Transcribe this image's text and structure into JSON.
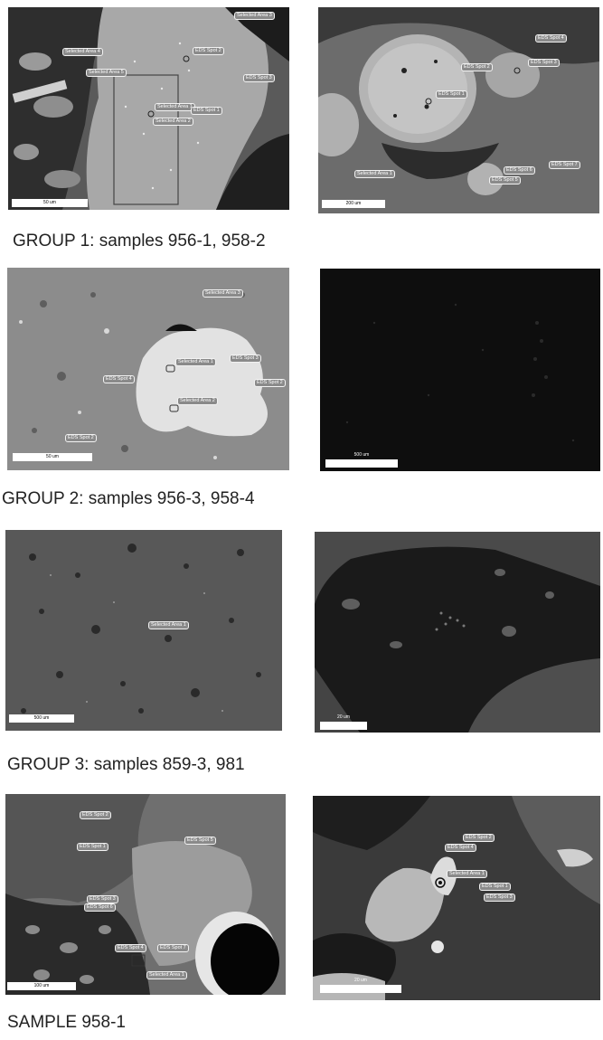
{
  "groups": [
    {
      "caption": "GROUP 1: samples 956-1, 958-2",
      "left": {
        "labels": [
          "Selected Area 3",
          "Selected Area 4",
          "EDS Spot 2",
          "Selected Area 5",
          "EDS Spot 3",
          "Selected Area 1",
          "EDS Spot 1",
          "Selected Area 2"
        ],
        "scale": "50 um"
      },
      "right": {
        "labels": [
          "EDS Spot 4",
          "EDS Spot 2",
          "EDS Spot 3",
          "EDS Spot 1",
          "Selected Area 1",
          "EDS Spot 6",
          "EDS Spot 7",
          "EDS Spot 5"
        ],
        "scale": "200 um"
      }
    },
    {
      "caption": "GROUP 2: samples 956-3, 958-4",
      "left": {
        "labels": [
          "Selected Area 3",
          "Selected Area 1",
          "EDS Spot 3",
          "EDS Spot 4",
          "EDS Spot 2",
          "Selected Area 2",
          "EDS Spot 2"
        ],
        "scale": "50 um"
      },
      "right": {
        "labels": [],
        "scale": "500 um"
      }
    },
    {
      "caption": "GROUP 3: samples 859-3, 981",
      "left": {
        "labels": [
          "Selected Area 1"
        ],
        "scale": "500 um"
      },
      "right": {
        "labels": [],
        "scale": "20 um"
      }
    },
    {
      "caption": "SAMPLE 958-1",
      "left": {
        "labels": [
          "EDS Spot 2",
          "EDS Spot 1",
          "EDS Spot 5",
          "EDS Spot 3",
          "EDS Spot 6",
          "EDS Spot 4",
          "EDS Spot 7",
          "Selected Area 1"
        ],
        "scale": "100 um"
      },
      "right": {
        "labels": [
          "EDS Spot 2",
          "EDS Spot 4",
          "Selected Area 1",
          "EDS Spot 1",
          "EDS Spot 3"
        ],
        "scale": "20 um"
      }
    }
  ]
}
